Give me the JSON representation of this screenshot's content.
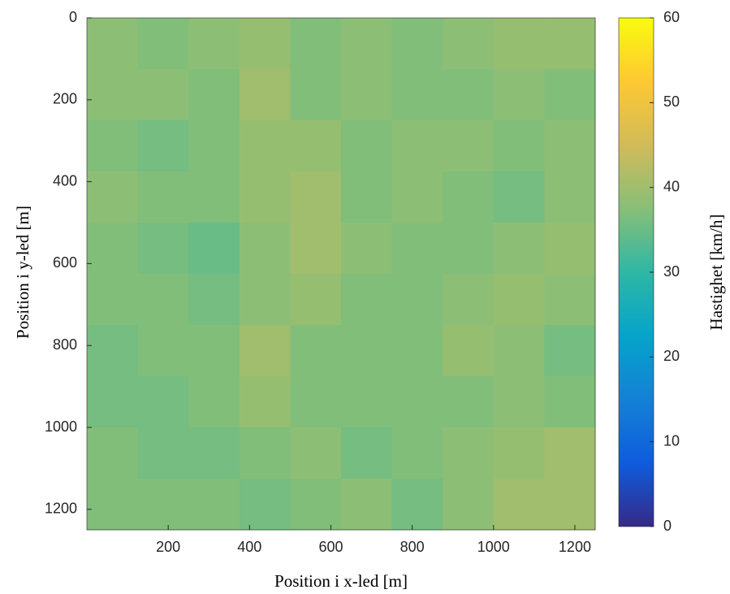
{
  "chart_data": {
    "type": "heatmap",
    "xlabel": "Position i x-led [m]",
    "ylabel": "Position i y-led [m]",
    "colorbar_label": "Hastighet [km/h]",
    "xbins": [
      0,
      125,
      250,
      375,
      500,
      625,
      750,
      875,
      1000,
      1125,
      1250
    ],
    "ybins": [
      0,
      125,
      250,
      375,
      500,
      625,
      750,
      875,
      1000,
      1125,
      1250
    ],
    "values": [
      [
        38,
        37,
        38,
        39,
        37,
        38,
        37,
        38,
        39,
        39
      ],
      [
        38,
        38,
        37,
        40,
        37,
        38,
        37,
        37,
        38,
        37
      ],
      [
        37,
        36,
        37,
        39,
        39,
        37,
        38,
        38,
        37,
        38
      ],
      [
        38,
        37,
        37,
        39,
        40,
        37,
        38,
        37,
        36,
        38
      ],
      [
        37,
        36,
        35,
        38,
        40,
        38,
        37,
        37,
        38,
        39
      ],
      [
        37,
        37,
        36,
        38,
        39,
        37,
        37,
        38,
        39,
        38
      ],
      [
        36,
        37,
        37,
        40,
        37,
        37,
        37,
        39,
        38,
        36
      ],
      [
        36,
        36,
        37,
        39,
        37,
        37,
        37,
        37,
        38,
        37
      ],
      [
        37,
        36,
        36,
        37,
        38,
        36,
        37,
        38,
        39,
        40
      ],
      [
        37,
        37,
        37,
        36,
        37,
        38,
        36,
        38,
        40,
        40
      ]
    ],
    "xlim": [
      0,
      1250
    ],
    "ylim": [
      0,
      1250
    ],
    "y_reversed": true,
    "xticks": [
      200,
      400,
      600,
      800,
      1000,
      1200
    ],
    "yticks": [
      0,
      200,
      400,
      600,
      800,
      1000,
      1200
    ],
    "clim": [
      0,
      60
    ],
    "cticks": [
      0,
      10,
      20,
      30,
      40,
      50,
      60
    ],
    "colormap": [
      "#352a87",
      "#0f5cdd",
      "#1481d6",
      "#06a4ca",
      "#2eb7a4",
      "#87bf77",
      "#d1bb59",
      "#fec832",
      "#f9fb0e"
    ]
  }
}
